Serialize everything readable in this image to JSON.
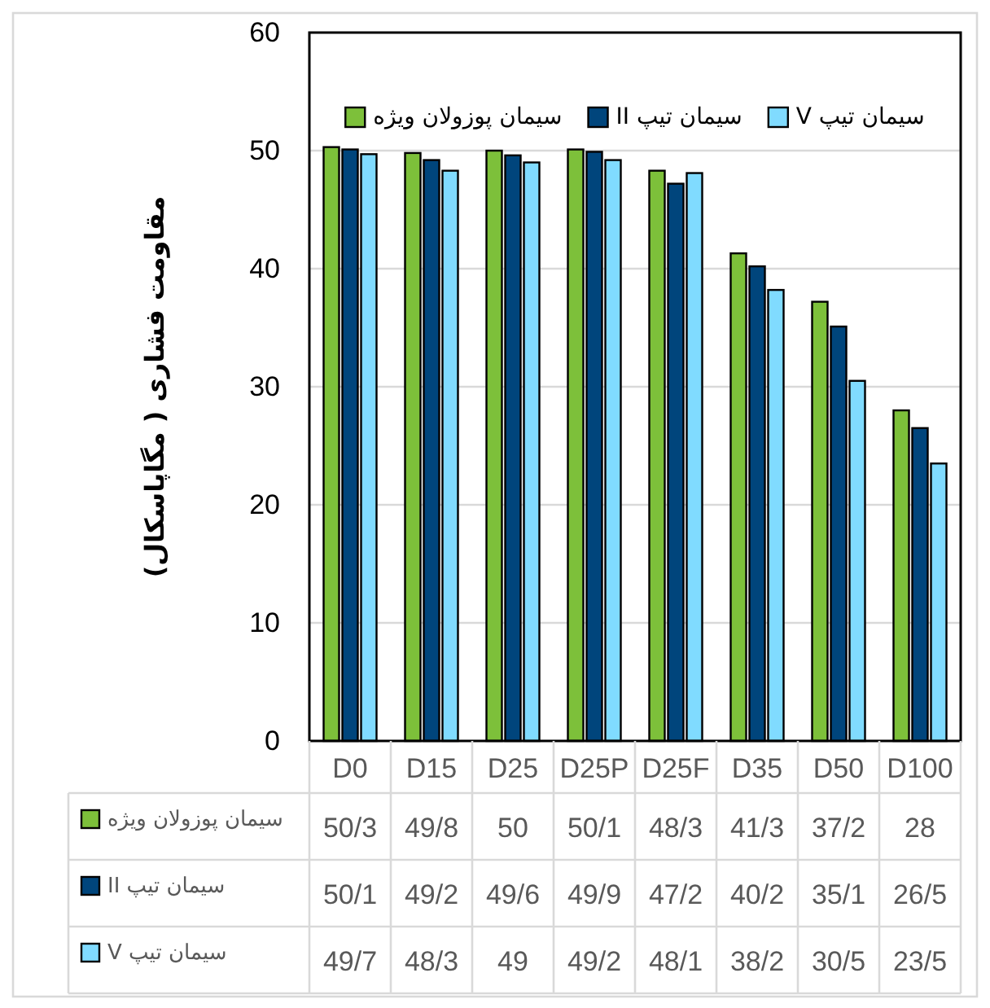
{
  "chart_data": {
    "type": "bar",
    "ylabel": "مقاومت فشاری ( مگاپاسکال)",
    "categories": [
      "D0",
      "D15",
      "D25",
      "D25P",
      "D25F",
      "D35",
      "D50",
      "D100"
    ],
    "series": [
      {
        "name": "سیمان پوزولان ویژه",
        "color": "#7dc03a",
        "values": [
          50.3,
          49.8,
          50,
          50.1,
          48.3,
          41.3,
          37.2,
          28
        ],
        "value_labels": [
          "50/3",
          "49/8",
          "50",
          "50/1",
          "48/3",
          "41/3",
          "37/2",
          "28"
        ]
      },
      {
        "name": "سیمان تیپ II",
        "color": "#00457c",
        "values": [
          50.1,
          49.2,
          49.6,
          49.9,
          47.2,
          40.2,
          35.1,
          26.5
        ],
        "value_labels": [
          "50/1",
          "49/2",
          "49/6",
          "49/9",
          "47/2",
          "40/2",
          "35/1",
          "26/5"
        ]
      },
      {
        "name": "سیمان تیپ V",
        "color": "#80dbff",
        "values": [
          49.7,
          48.3,
          49,
          49.2,
          48.1,
          38.2,
          30.5,
          23.5
        ],
        "value_labels": [
          "49/7",
          "48/3",
          "49",
          "49/2",
          "48/1",
          "38/2",
          "30/5",
          "23/5"
        ]
      }
    ],
    "ylim": [
      0,
      60
    ],
    "yticks": [
      0,
      10,
      20,
      30,
      40,
      50,
      60
    ],
    "grid": "y",
    "legend": "top"
  }
}
